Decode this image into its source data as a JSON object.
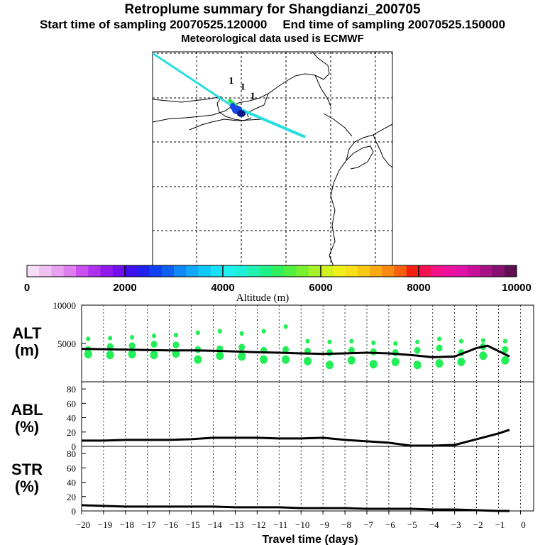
{
  "header": {
    "title": "Retroplume summary for Shangdianzi_200705",
    "start_time": "Start time of sampling 20070525.120000",
    "end_time": "End time of sampling 20070525.150000",
    "met_data": "Meteorological data used is ECMWF"
  },
  "map": {
    "labels": [
      {
        "text": "1",
        "lon": 108.8,
        "lat": 41.6
      },
      {
        "text": "1",
        "lon": 110.1,
        "lat": 40.9
      },
      {
        "text": "1",
        "lon": 111.2,
        "lat": 39.9
      }
    ],
    "plume_colors": {
      "green": "#2ee060",
      "cyan": "#27dde0",
      "blue": "#1848e8",
      "dark": "#0a1a8a"
    }
  },
  "colorbar": {
    "ticks": [
      "0",
      "2000",
      "4000",
      "6000",
      "8000",
      "10000"
    ],
    "label": "Altitude (m)",
    "colors": [
      "#f6dcf6",
      "#f0c0f0",
      "#e8a0f0",
      "#de7ef0",
      "#cc50f0",
      "#b030f0",
      "#9018f0",
      "#7010f0",
      "#4010f0",
      "#2020f0",
      "#1040f8",
      "#1060f8",
      "#1088f8",
      "#10a8f8",
      "#10c8f8",
      "#18e0f8",
      "#20f0f0",
      "#20f0d8",
      "#20f0b0",
      "#20f088",
      "#30f060",
      "#50f040",
      "#78f030",
      "#a8f028",
      "#d0f020",
      "#f0f018",
      "#f8e018",
      "#f8c810",
      "#f8a810",
      "#f88810",
      "#f86010",
      "#f82010",
      "#f81050",
      "#f81088",
      "#f010a0",
      "#e010a8",
      "#c81098",
      "#a81088",
      "#881070",
      "#601050"
    ]
  },
  "panels": {
    "alt": {
      "label_line1": "ALT",
      "label_line2": "(m)"
    },
    "abl": {
      "label_line1": "ABL",
      "label_line2": "(%)"
    },
    "str": {
      "label_line1": "STR",
      "label_line2": "(%)"
    }
  },
  "chart_data": [
    {
      "type": "line",
      "name": "ALT",
      "ylabel": "ALT (m)",
      "ylim": [
        0,
        10000
      ],
      "yticks": [
        "10000",
        "5000"
      ],
      "x": [
        -20,
        -19,
        -18,
        -17,
        -16,
        -15,
        -14,
        -13,
        -12,
        -11,
        -10,
        -9,
        -8,
        -7,
        -6,
        -5,
        -4,
        -3,
        -2,
        -1.5,
        -0.5
      ],
      "values": [
        4300,
        4250,
        4200,
        4150,
        4100,
        4100,
        4050,
        3950,
        3850,
        3800,
        3700,
        3650,
        3700,
        3800,
        3700,
        3500,
        3200,
        3300,
        4400,
        4700,
        3300
      ],
      "cluster_color": "#22ee55",
      "clusters": [
        {
          "x": -19.7,
          "values": [
            5600,
            4200,
            3600
          ]
        },
        {
          "x": -18.7,
          "values": [
            5700,
            4600,
            3500
          ]
        },
        {
          "x": -17.7,
          "values": [
            5800,
            4700,
            3600
          ]
        },
        {
          "x": -16.7,
          "values": [
            6000,
            4900,
            3500
          ]
        },
        {
          "x": -15.7,
          "values": [
            6100,
            4800,
            3700
          ]
        },
        {
          "x": -14.7,
          "values": [
            6400,
            4200,
            2900
          ]
        },
        {
          "x": -13.7,
          "values": [
            6600,
            4300,
            3400
          ]
        },
        {
          "x": -12.7,
          "values": [
            6300,
            4500,
            3300
          ]
        },
        {
          "x": -11.7,
          "values": [
            6600,
            4100,
            2900
          ]
        },
        {
          "x": -10.7,
          "values": [
            7200,
            4200,
            2900
          ]
        },
        {
          "x": -9.7,
          "values": [
            5300,
            4000,
            2700
          ]
        },
        {
          "x": -8.7,
          "values": [
            5200,
            3800,
            2200
          ]
        },
        {
          "x": -7.7,
          "values": [
            5300,
            4100,
            2800
          ]
        },
        {
          "x": -6.7,
          "values": [
            5100,
            3900,
            2300
          ]
        },
        {
          "x": -5.7,
          "values": [
            5000,
            3800,
            2600
          ]
        },
        {
          "x": -4.7,
          "values": [
            5200,
            4100,
            2200
          ]
        },
        {
          "x": -3.7,
          "values": [
            5600,
            4400,
            2400
          ]
        },
        {
          "x": -2.7,
          "values": [
            5300,
            3800,
            2600
          ]
        },
        {
          "x": -1.7,
          "values": [
            5400,
            4600,
            3400
          ]
        },
        {
          "x": -0.7,
          "values": [
            5300,
            4200,
            2800
          ]
        }
      ]
    },
    {
      "type": "line",
      "name": "ABL",
      "ylabel": "ABL (%)",
      "ylim": [
        0,
        90
      ],
      "yticks": [
        "80",
        "60",
        "40",
        "20",
        "0"
      ],
      "x": [
        -20,
        -19,
        -18,
        -17,
        -16,
        -15,
        -14,
        -13,
        -12,
        -11,
        -10,
        -9,
        -8,
        -7,
        -6,
        -5,
        -4,
        -3,
        -2,
        -1,
        -0.5
      ],
      "values": [
        8,
        8,
        9,
        9,
        9,
        10,
        12,
        12,
        12,
        11,
        11,
        12,
        9,
        7,
        5,
        1,
        1,
        2,
        10,
        18,
        23
      ]
    },
    {
      "type": "line",
      "name": "STR",
      "ylabel": "STR (%)",
      "ylim": [
        0,
        90
      ],
      "yticks": [
        "80",
        "60",
        "40",
        "20",
        "0"
      ],
      "x": [
        -20,
        -19,
        -18,
        -17,
        -16,
        -15,
        -14,
        -13,
        -12,
        -11,
        -10,
        -9,
        -8,
        -7,
        -6,
        -5,
        -4,
        -3,
        -2,
        -1,
        -0.5
      ],
      "values": [
        8,
        7,
        6,
        6,
        6,
        6,
        6,
        5,
        5,
        5,
        4,
        4,
        4,
        3,
        3,
        3,
        2,
        2,
        1,
        0,
        0
      ],
      "xlabel": "Travel time (days)",
      "xticks": [
        "-20",
        "-19",
        "-18",
        "-17",
        "-16",
        "-15",
        "-14",
        "-13",
        "-12",
        "-11",
        "-10",
        "-9",
        "-8",
        "-7",
        "-6",
        "-5",
        "-4",
        "-3",
        "-2",
        "-1",
        "0"
      ]
    }
  ]
}
